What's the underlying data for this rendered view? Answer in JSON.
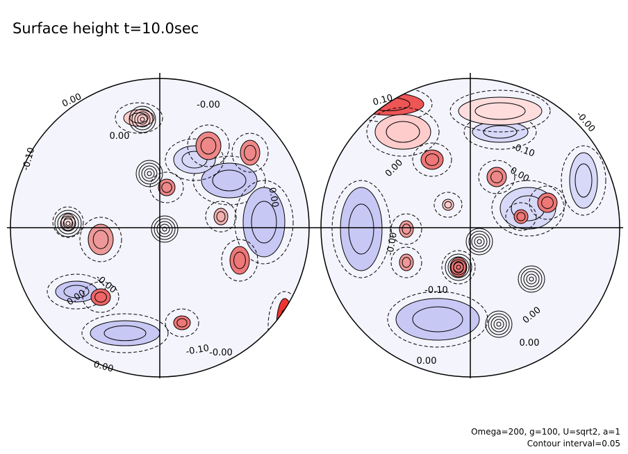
{
  "title": "Surface height t=10.0sec",
  "notes": [
    "Omega=200, g=100, U=sqrt2, a=1",
    "Contour interval=0.05"
  ],
  "hemispheres": [
    {
      "labels": [
        "0.00",
        "-0.00",
        "0.00",
        "-0.10",
        "0.00",
        "-0.00",
        "0.00",
        "-0.10",
        "-0.00",
        "0.00"
      ]
    },
    {
      "labels": [
        "0.10",
        "-0.00",
        "0.00",
        "-0.10",
        "0.00",
        "-0.00",
        "-0.10",
        "0.00",
        "0.00",
        "0.00"
      ]
    }
  ]
}
